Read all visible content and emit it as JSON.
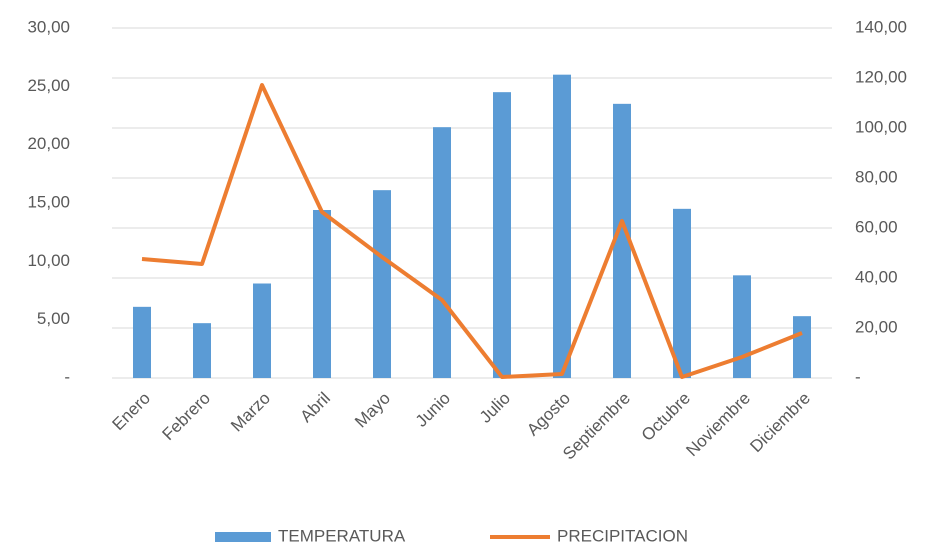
{
  "chart_data": {
    "type": "bar",
    "categories": [
      "Enero",
      "Febrero",
      "Marzo",
      "Abril",
      "Mayo",
      "Junio",
      "Julio",
      "Agosto",
      "Septiembre",
      "Octubre",
      "Noviembre",
      "Diciembre"
    ],
    "series": [
      {
        "name": "TEMPERATURA",
        "type": "bar",
        "color": "#5b9bd5",
        "values": [
          6.1,
          4.7,
          8.1,
          14.4,
          16.1,
          21.5,
          24.5,
          26.0,
          23.5,
          14.5,
          8.8,
          5.3
        ]
      },
      {
        "name": "PRECIPITACION",
        "type": "line",
        "axis": "y2",
        "color": "#ed7d31",
        "values": [
          47.6,
          45.6,
          117.2,
          66.4,
          48.4,
          31.2,
          0.4,
          1.6,
          62.8,
          0.4,
          8.4,
          18.0
        ]
      }
    ],
    "ylim": [
      0,
      30
    ],
    "yticks": [
      {
        "value": 0,
        "label": "-"
      },
      {
        "value": 5,
        "label": "5,00"
      },
      {
        "value": 10,
        "label": "10,00"
      },
      {
        "value": 15,
        "label": "15,00"
      },
      {
        "value": 20,
        "label": "20,00"
      },
      {
        "value": 25,
        "label": "25,00"
      },
      {
        "value": 30,
        "label": "30,00"
      }
    ],
    "y2lim": [
      0,
      140
    ],
    "y2ticks": [
      {
        "value": 0,
        "label": "-"
      },
      {
        "value": 20,
        "label": "20,00"
      },
      {
        "value": 40,
        "label": "40,00"
      },
      {
        "value": 60,
        "label": "60,00"
      },
      {
        "value": 80,
        "label": "80,00"
      },
      {
        "value": 100,
        "label": "100,00"
      },
      {
        "value": 120,
        "label": "120,00"
      },
      {
        "value": 140,
        "label": "140,00"
      }
    ],
    "grid": true,
    "legend": "bottom"
  }
}
